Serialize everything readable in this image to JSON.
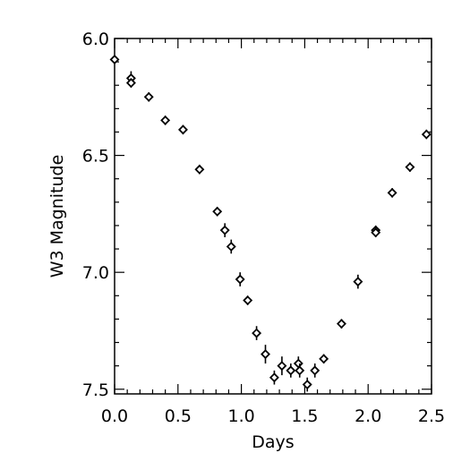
{
  "chart_data": {
    "type": "scatter",
    "xlabel": "Days",
    "ylabel": "W3 Magnitude",
    "xlim": [
      0.0,
      2.5
    ],
    "ylim": [
      7.52,
      6.0
    ],
    "y_inverted": true,
    "grid": false,
    "x_ticks": [
      "0.0",
      "0.5",
      "1.0",
      "1.5",
      "2.0",
      "2.5"
    ],
    "y_ticks": [
      "6.0",
      "6.5",
      "7.0",
      "7.5"
    ],
    "x_tick_values": [
      0.0,
      0.5,
      1.0,
      1.5,
      2.0,
      2.5
    ],
    "y_tick_values": [
      6.0,
      6.5,
      7.0,
      7.5
    ],
    "marker": "diamond",
    "points": [
      {
        "x": 0.0,
        "y": 6.09,
        "err": 0.0
      },
      {
        "x": 0.13,
        "y": 6.17,
        "err": 0.03
      },
      {
        "x": 0.13,
        "y": 6.19,
        "err": 0.02
      },
      {
        "x": 0.27,
        "y": 6.25,
        "err": 0.02
      },
      {
        "x": 0.4,
        "y": 6.35,
        "err": 0.02
      },
      {
        "x": 0.54,
        "y": 6.39,
        "err": 0.02
      },
      {
        "x": 0.67,
        "y": 6.56,
        "err": 0.02
      },
      {
        "x": 0.81,
        "y": 6.74,
        "err": 0.02
      },
      {
        "x": 0.87,
        "y": 6.82,
        "err": 0.03
      },
      {
        "x": 0.92,
        "y": 6.89,
        "err": 0.03
      },
      {
        "x": 0.99,
        "y": 7.03,
        "err": 0.03
      },
      {
        "x": 1.05,
        "y": 7.12,
        "err": 0.02
      },
      {
        "x": 1.12,
        "y": 7.26,
        "err": 0.03
      },
      {
        "x": 1.19,
        "y": 7.35,
        "err": 0.04
      },
      {
        "x": 1.26,
        "y": 7.45,
        "err": 0.03
      },
      {
        "x": 1.32,
        "y": 7.4,
        "err": 0.04
      },
      {
        "x": 1.39,
        "y": 7.42,
        "err": 0.03
      },
      {
        "x": 1.45,
        "y": 7.39,
        "err": 0.03
      },
      {
        "x": 1.46,
        "y": 7.42,
        "err": 0.03
      },
      {
        "x": 1.52,
        "y": 7.48,
        "err": 0.03
      },
      {
        "x": 1.58,
        "y": 7.42,
        "err": 0.03
      },
      {
        "x": 1.65,
        "y": 7.37,
        "err": 0.02
      },
      {
        "x": 1.79,
        "y": 7.22,
        "err": 0.02
      },
      {
        "x": 1.92,
        "y": 7.04,
        "err": 0.03
      },
      {
        "x": 2.06,
        "y": 6.82,
        "err": 0.02
      },
      {
        "x": 2.06,
        "y": 6.83,
        "err": 0.02
      },
      {
        "x": 2.19,
        "y": 6.66,
        "err": 0.02
      },
      {
        "x": 2.33,
        "y": 6.55,
        "err": 0.02
      },
      {
        "x": 2.46,
        "y": 6.41,
        "err": 0.02
      }
    ]
  }
}
